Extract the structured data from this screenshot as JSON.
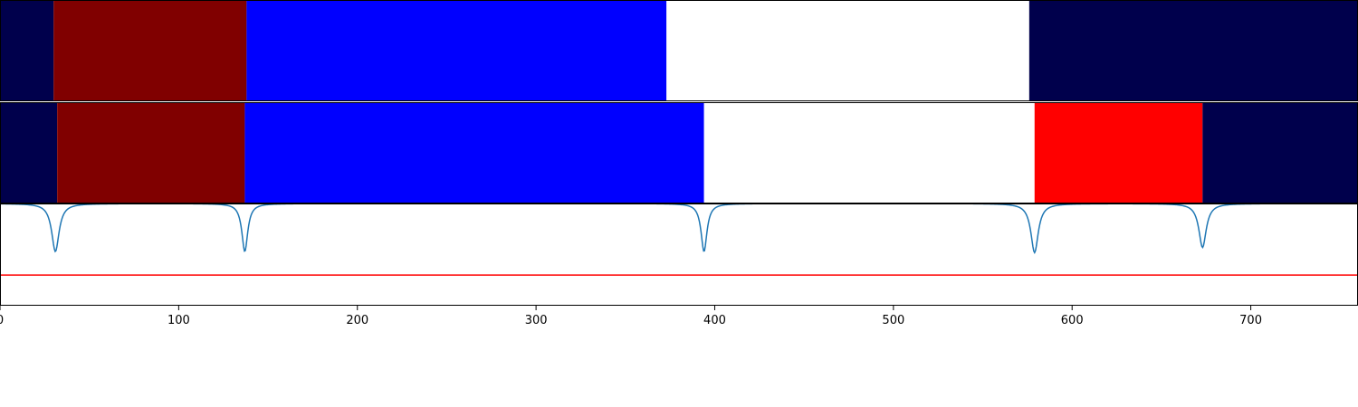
{
  "chart_data": {
    "type": "segmentation",
    "x_range": [
      0,
      760
    ],
    "x_ticks": [
      0,
      100,
      200,
      300,
      400,
      500,
      600,
      700
    ],
    "x_tick_labels": [
      "0",
      "100",
      "200",
      "300",
      "400",
      "500",
      "600",
      "700"
    ],
    "rows": [
      {
        "name": "row-1",
        "segments": [
          {
            "start": 0,
            "end": 30,
            "color": "#00004c"
          },
          {
            "start": 30,
            "end": 138,
            "color": "#800000"
          },
          {
            "start": 138,
            "end": 373,
            "color": "#0000ff"
          },
          {
            "start": 373,
            "end": 576,
            "color": "#ffffff"
          },
          {
            "start": 576,
            "end": 760,
            "color": "#00004c"
          }
        ]
      },
      {
        "name": "row-2",
        "segments": [
          {
            "start": 0,
            "end": 32,
            "color": "#00004c"
          },
          {
            "start": 32,
            "end": 137,
            "color": "#800000"
          },
          {
            "start": 137,
            "end": 394,
            "color": "#0000ff"
          },
          {
            "start": 394,
            "end": 579,
            "color": "#ffffff"
          },
          {
            "start": 579,
            "end": 673,
            "color": "#ff0000"
          },
          {
            "start": 673,
            "end": 760,
            "color": "#00004c"
          }
        ]
      }
    ],
    "signal": {
      "color": "#1f77b4",
      "y_range": [
        0,
        1
      ],
      "baseline": 1.0,
      "threshold": 0.3,
      "threshold_color": "#ff0000",
      "dips": [
        {
          "x": 31,
          "min": 0.53,
          "width": 2.5
        },
        {
          "x": 137,
          "min": 0.53,
          "width": 2.0
        },
        {
          "x": 394,
          "min": 0.53,
          "width": 2.0
        },
        {
          "x": 579,
          "min": 0.52,
          "width": 2.5
        },
        {
          "x": 673,
          "min": 0.57,
          "width": 2.5
        }
      ]
    }
  }
}
